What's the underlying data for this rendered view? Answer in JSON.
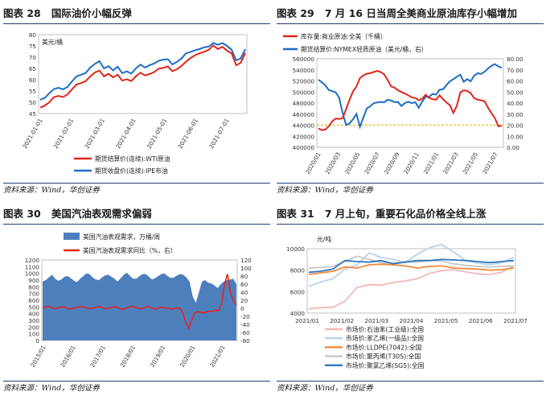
{
  "colors": {
    "red": "#e0261b",
    "blue": "#1f6dc2",
    "navy": "#1f3f7a",
    "fill": "#4e7fbd",
    "gold": "#f1b51c",
    "c1": "#f2b8b8",
    "c2": "#b9d3ee",
    "c3": "#f08a3a",
    "c4": "#c8c8c8",
    "c5": "#2d78be"
  },
  "panels": {
    "p28": {
      "label": "图表 28",
      "title": "国际油价小幅反弹",
      "source": "资料来源：Wind，华创证券"
    },
    "p29": {
      "label": "图表 29",
      "title": "7 月 16 日当周全美商业原油库存小幅增加",
      "source": "资料来源：Wind，华创证券"
    },
    "p30": {
      "label": "图表 30",
      "title": "美国汽油表观需求偏弱",
      "source": "资料来源：Wind，华创证券"
    },
    "p31": {
      "label": "图表 31",
      "title": "7 月上旬，重要石化品价格全线上涨",
      "source": "资料来源：Wind，华创证券"
    }
  },
  "chart_data": [
    {
      "id": "c28",
      "type": "line",
      "unit": "美元/桶",
      "ylim": [
        45,
        80
      ],
      "yticks": [
        "80",
        "75",
        "70",
        "65",
        "60",
        "55",
        "50",
        "45"
      ],
      "xticks": [
        "2021-01-01",
        "2021-02-01",
        "2021-03-01",
        "2021-04-01",
        "2021-05-01",
        "2021-06-01",
        "2021-07-01"
      ],
      "series": [
        {
          "name": "期货结算价(连续):WTI原油",
          "color": "red",
          "values": [
            47.6,
            48.5,
            50.0,
            52.2,
            52.8,
            52.3,
            53.5,
            55.8,
            57.9,
            58.5,
            59.4,
            61.5,
            63.2,
            64.0,
            61.5,
            62.6,
            61.0,
            62.2,
            59.6,
            60.2,
            59.4,
            61.5,
            63.1,
            61.9,
            62.5,
            63.4,
            64.9,
            65.2,
            65.9,
            63.8,
            64.6,
            66.1,
            68.0,
            69.6,
            70.9,
            71.7,
            72.4,
            73.3,
            75.2,
            73.6,
            74.6,
            72.9,
            71.7,
            66.4,
            67.5,
            71.9
          ]
        },
        {
          "name": "期货收盘价(连续):IPE布油",
          "color": "blue",
          "values": [
            51.1,
            51.9,
            54.0,
            55.8,
            56.4,
            55.7,
            56.8,
            59.3,
            61.5,
            62.2,
            63.0,
            65.4,
            67.0,
            68.2,
            65.0,
            66.0,
            64.1,
            65.8,
            62.9,
            63.7,
            62.7,
            65.0,
            66.7,
            65.4,
            66.4,
            67.2,
            68.4,
            68.9,
            69.1,
            66.8,
            67.9,
            69.4,
            71.7,
            72.3,
            73.1,
            73.6,
            74.4,
            74.7,
            76.3,
            75.5,
            76.2,
            75.0,
            73.3,
            68.6,
            69.4,
            73.5
          ]
        }
      ]
    },
    {
      "id": "c29",
      "type": "line",
      "dual_axis": true,
      "ylim_left": [
        400000,
        560000
      ],
      "ylim_right": [
        0,
        80
      ],
      "yticks_left": [
        "560000",
        "540000",
        "520000",
        "500000",
        "480000",
        "460000",
        "440000",
        "420000",
        "400000"
      ],
      "yticks_right": [
        "80.00",
        "70.00",
        "60.00",
        "50.00",
        "40.00",
        "30.00",
        "20.00",
        "10.00",
        "0.00"
      ],
      "xticks": [
        "2020/01",
        "2020/03",
        "2020/05",
        "2020/07",
        "2020/09",
        "2020/11",
        "2021/01",
        "2021/03",
        "2021/05",
        "2021/07"
      ],
      "reference_line": {
        "axis": "right",
        "value": 20.0,
        "color": "gold"
      },
      "series": [
        {
          "name": "库存量:商业原油:全美（千桶）",
          "color": "red",
          "axis": "left",
          "values": [
            434000,
            431000,
            432000,
            438000,
            447000,
            452000,
            451000,
            453000,
            469000,
            486000,
            501000,
            510000,
            525000,
            530000,
            533000,
            534000,
            536000,
            538000,
            536000,
            532000,
            522000,
            510000,
            508000,
            503000,
            500000,
            497000,
            494000,
            490000,
            489000,
            485000,
            488000,
            495000,
            489000,
            487000,
            486000,
            494000,
            487000,
            481000,
            476000,
            462000,
            475000,
            499000,
            503000,
            502000,
            498000,
            489000,
            486000,
            485000,
            483000,
            472000,
            462000,
            453000,
            438000,
            439000
          ]
        },
        {
          "name": "期货结算价:NYMEX轻质原油（美元/桶，右）",
          "color": "blue",
          "axis": "right",
          "values": [
            61.0,
            58.8,
            56.0,
            51.7,
            50.8,
            49.6,
            44.8,
            31.0,
            20.1,
            21.6,
            25.3,
            30.1,
            18.5,
            27.0,
            35.2,
            37.0,
            39.8,
            40.6,
            41.0,
            40.6,
            42.9,
            42.3,
            40.8,
            41.0,
            37.3,
            39.9,
            41.1,
            39.9,
            40.7,
            35.7,
            41.4,
            45.7,
            45.6,
            48.2,
            47.6,
            52.0,
            52.4,
            56.2,
            59.6,
            61.5,
            63.8,
            65.6,
            59.2,
            61.6,
            59.6,
            64.6,
            66.9,
            66.3,
            68.2,
            71.2,
            73.6,
            75.2,
            73.1,
            71.8
          ]
        }
      ]
    },
    {
      "id": "c30",
      "type": "area+line",
      "dual_axis": true,
      "ylim_left": [
        0,
        1200
      ],
      "ylim_right": [
        -80,
        120
      ],
      "yticks_left": [
        "1200",
        "1100",
        "1000",
        "900",
        "800",
        "700",
        "600",
        "500",
        "400",
        "300",
        "200",
        "100",
        "0"
      ],
      "yticks_right": [
        "120",
        "100",
        "80",
        "60",
        "40",
        "20",
        "0",
        "-20",
        "-40",
        "-60",
        "-80"
      ],
      "xticks": [
        "2015/01",
        "2016/01",
        "2017/01",
        "2018/01",
        "2019/01",
        "2020/01",
        "2021/01"
      ],
      "series": [
        {
          "name": "美国汽油表观需求，万桶/周",
          "color": "fill",
          "axis": "left",
          "type": "area",
          "values": [
            880,
            900,
            940,
            980,
            920,
            890,
            910,
            950,
            960,
            930,
            890,
            870,
            920,
            960,
            1000,
            990,
            940,
            910,
            900,
            940,
            970,
            980,
            950,
            920,
            880,
            930,
            980,
            1010,
            960,
            920,
            920,
            960,
            990,
            990,
            950,
            910,
            930,
            960,
            990,
            1000,
            960,
            930,
            940,
            970,
            990,
            980,
            940,
            880,
            660,
            560,
            720,
            880,
            900,
            860,
            850,
            820,
            780,
            840,
            880,
            900,
            910,
            920,
            840
          ]
        },
        {
          "name": "美国汽油表观需求同比（%，右）",
          "color": "red",
          "axis": "right",
          "type": "line",
          "values": [
            1,
            3,
            5,
            2,
            -1,
            0,
            3,
            4,
            1,
            -2,
            0,
            1,
            3,
            5,
            2,
            0,
            -1,
            1,
            3,
            4,
            2,
            -1,
            0,
            2,
            4,
            2,
            -1,
            -2,
            0,
            3,
            5,
            3,
            0,
            -1,
            1,
            4,
            3,
            0,
            -2,
            1,
            2,
            1,
            0,
            -2,
            -1,
            1,
            0,
            -10,
            -35,
            -50,
            -30,
            -12,
            -8,
            -10,
            -12,
            -9,
            -7,
            -8,
            -5,
            -6,
            10,
            60,
            85,
            40,
            20,
            8
          ]
        }
      ]
    },
    {
      "id": "c31",
      "type": "line",
      "unit": "元/吨",
      "ylim": [
        4000,
        10000
      ],
      "yticks": [
        "10000",
        "8000",
        "6000",
        "4000"
      ],
      "xticks": [
        "2021/01",
        "2021/02",
        "2021/03",
        "2021/04",
        "2021/05",
        "2021/06",
        "2021/07"
      ],
      "series": [
        {
          "name": "市场价:石油苯(工业级):全国",
          "color": "c1",
          "values": [
            4400,
            4500,
            4550,
            5100,
            6400,
            6650,
            6600,
            6850,
            7000,
            7200,
            7700,
            7950,
            8050,
            7850,
            7650,
            7600,
            7800,
            8400
          ]
        },
        {
          "name": "市场价:苯乙烯(一级品):全国",
          "color": "c2",
          "values": [
            6500,
            6900,
            7200,
            8100,
            8500,
            9600,
            9200,
            9000,
            8700,
            9500,
            10100,
            10400,
            9700,
            8900,
            8650,
            8500,
            8700,
            9200
          ]
        },
        {
          "name": "市场价:LLDPE(7042):全国",
          "color": "c3",
          "values": [
            7600,
            7750,
            7900,
            8300,
            8200,
            8500,
            8550,
            8500,
            8400,
            8200,
            8350,
            8400,
            8200,
            8150,
            8100,
            8000,
            8050,
            8200
          ]
        },
        {
          "name": "市场价:聚丙烯(T30S):全国",
          "color": "c4",
          "values": [
            8200,
            8250,
            8350,
            8800,
            9300,
            9000,
            8700,
            8650,
            8800,
            8750,
            8900,
            8850,
            8600,
            8450,
            8350,
            8300,
            8350,
            8400
          ]
        },
        {
          "name": "市场价:聚氯乙烯(SG5):全国",
          "color": "c5",
          "values": [
            7800,
            7900,
            8100,
            8900,
            8800,
            8750,
            8900,
            8600,
            8750,
            8900,
            8900,
            9000,
            8950,
            8900,
            8800,
            8700,
            8800,
            8900
          ]
        }
      ]
    }
  ]
}
